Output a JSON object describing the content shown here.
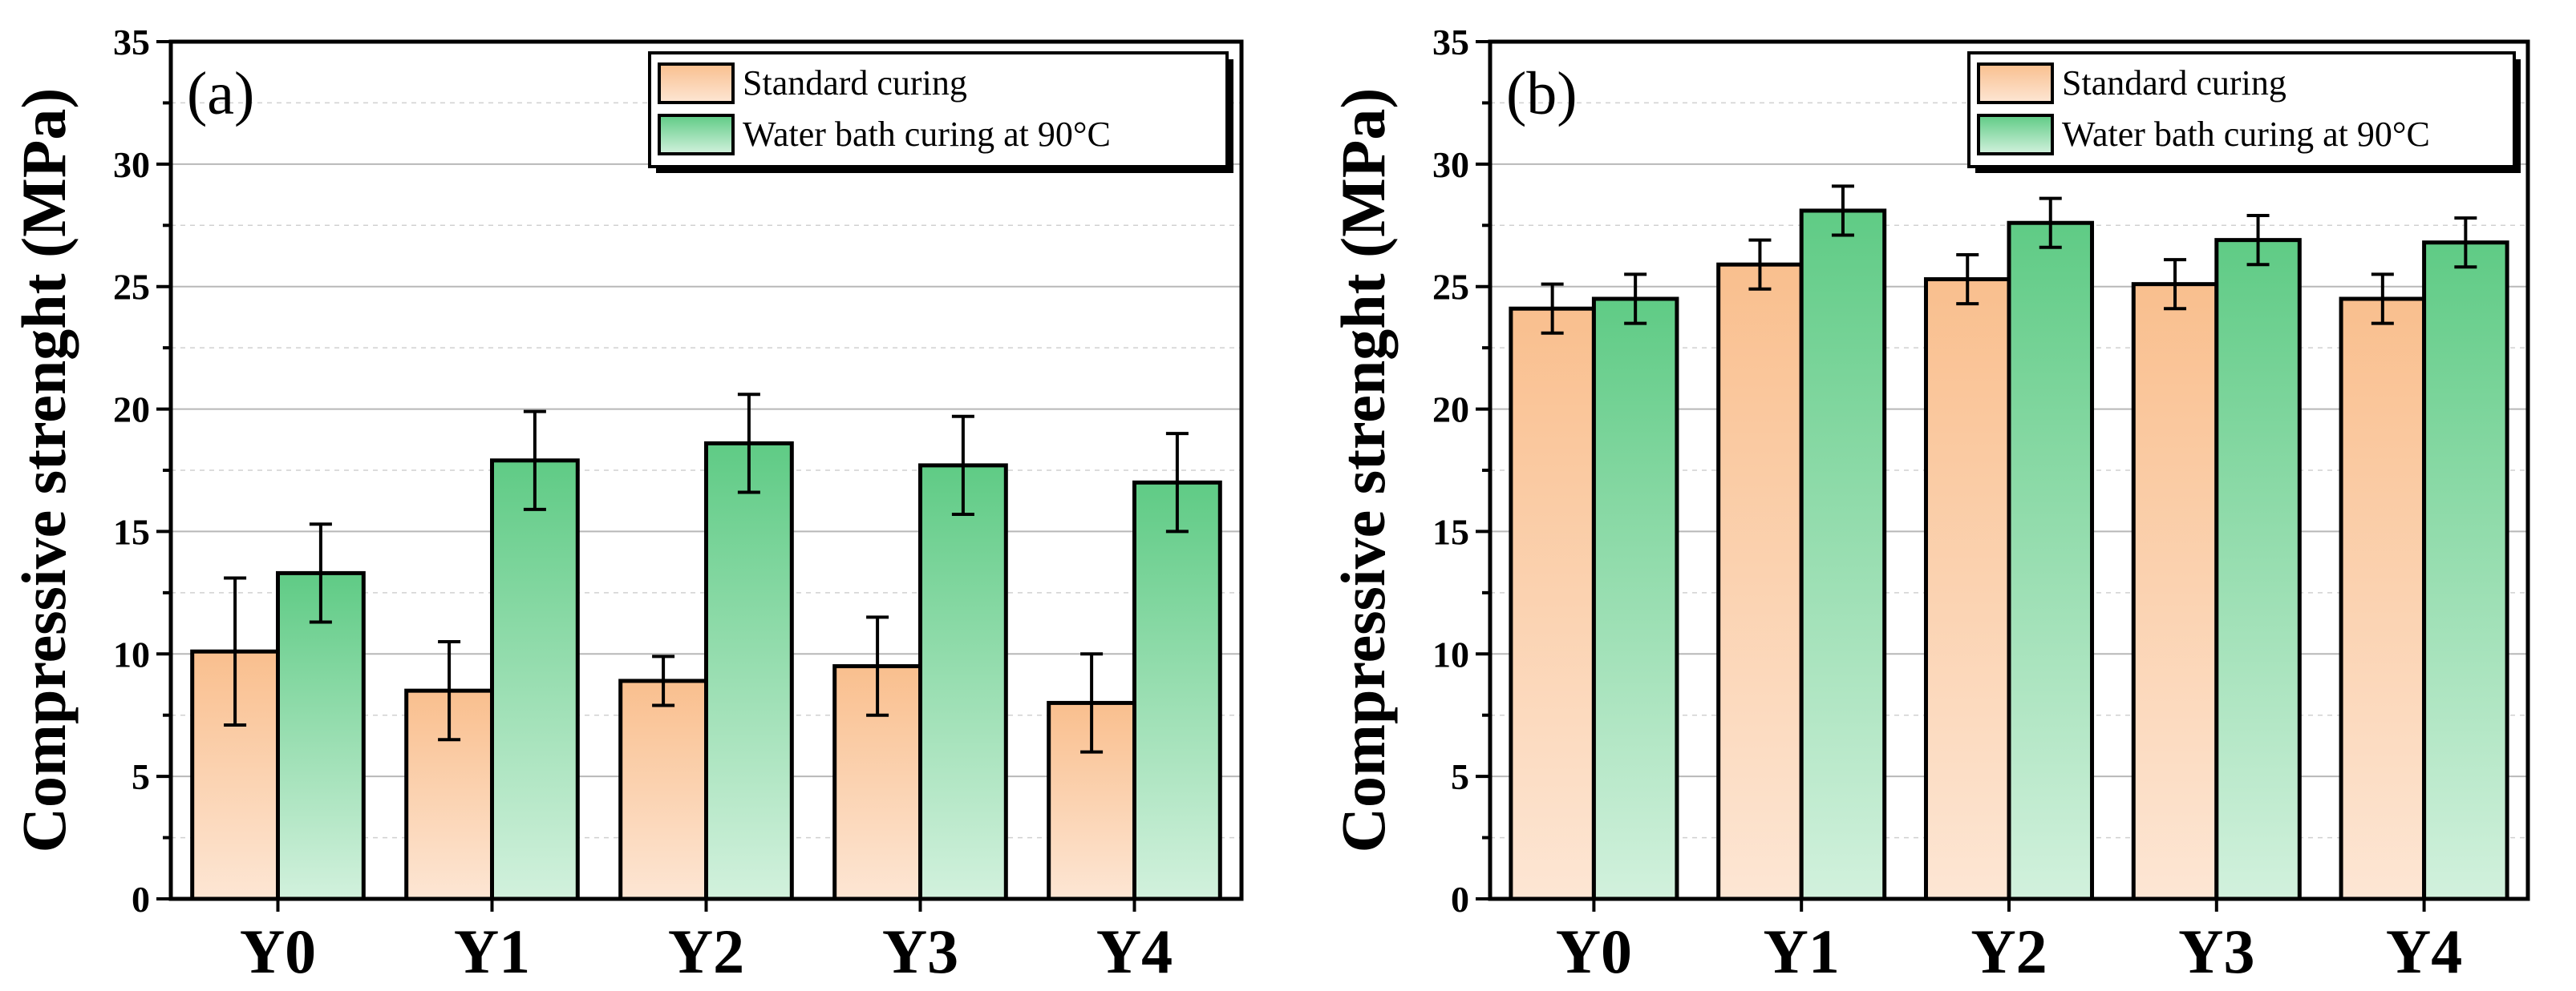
{
  "chart_data": [
    {
      "type": "bar",
      "panel_label": "(a)",
      "title": "",
      "xlabel": "",
      "ylabel": "Compressive strenght (MPa)",
      "ylim": [
        0,
        35
      ],
      "yticks": [
        "0",
        "5",
        "10",
        "15",
        "20",
        "25",
        "30",
        "35"
      ],
      "categories": [
        "Y0",
        "Y1",
        "Y2",
        "Y3",
        "Y4"
      ],
      "legend_position": "top-right",
      "grid": true,
      "series": [
        {
          "name": "Standard curing",
          "values": [
            10.1,
            8.5,
            8.9,
            9.5,
            8.0
          ],
          "errors": [
            3.0,
            2.0,
            1.0,
            2.0,
            2.0
          ],
          "color_top": "#f9bf8e",
          "color_bottom": "#fde6d4"
        },
        {
          "name": "Water bath curing at 90°C",
          "values": [
            13.3,
            17.9,
            18.6,
            17.7,
            17.0
          ],
          "errors": [
            2.0,
            2.0,
            2.0,
            2.0,
            2.0
          ],
          "color_top": "#5fcb85",
          "color_bottom": "#d2f1dd"
        }
      ]
    },
    {
      "type": "bar",
      "panel_label": "(b)",
      "title": "",
      "xlabel": "",
      "ylabel": "Compressive strenght (MPa)",
      "ylim": [
        0,
        35
      ],
      "yticks": [
        "0",
        "5",
        "10",
        "15",
        "20",
        "25",
        "30",
        "35"
      ],
      "categories": [
        "Y0",
        "Y1",
        "Y2",
        "Y3",
        "Y4"
      ],
      "legend_position": "top-right",
      "grid": true,
      "series": [
        {
          "name": "Standard curing",
          "values": [
            24.1,
            25.9,
            25.3,
            25.1,
            24.5
          ],
          "errors": [
            1.0,
            1.0,
            1.0,
            1.0,
            1.0
          ],
          "color_top": "#f9bf8e",
          "color_bottom": "#fde6d4"
        },
        {
          "name": "Water bath curing at 90°C",
          "values": [
            24.5,
            28.1,
            27.6,
            26.9,
            26.8
          ],
          "errors": [
            1.0,
            1.0,
            1.0,
            1.0,
            1.0
          ],
          "color_top": "#5fcb85",
          "color_bottom": "#d2f1dd"
        }
      ]
    }
  ]
}
